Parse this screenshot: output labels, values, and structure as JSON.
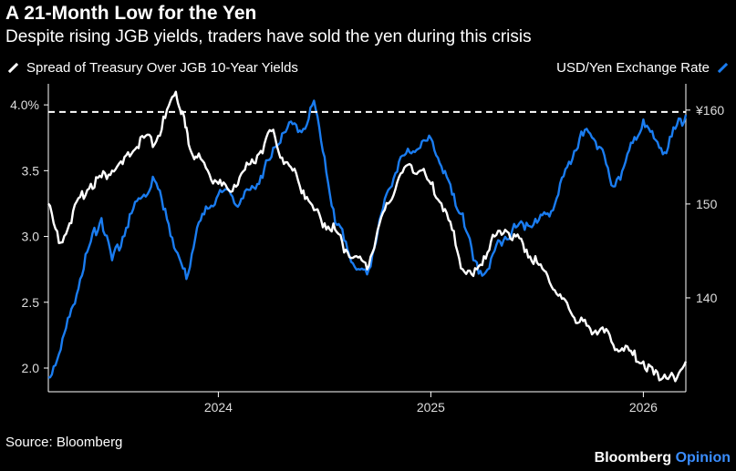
{
  "colors": {
    "background": "#000000",
    "spread": "#ffffff",
    "usdjpy": "#1a7cf0",
    "accent": "#3a8dff"
  },
  "chart_data": {
    "type": "line",
    "title": "A 21-Month Low for the Yen",
    "subtitle": "Despite rising JGB yields, traders have sold the yen during this crisis",
    "x_ticks": [
      "2024",
      "2025",
      "2026"
    ],
    "left_axis": {
      "label": "Spread of Treasury Over JGB 10-Year Yields",
      "ticks": [
        "4.0%",
        "3.5",
        "3.0",
        "2.5",
        "2.0"
      ],
      "tick_values": [
        4.0,
        3.5,
        3.0,
        2.5,
        2.0
      ],
      "ylim": [
        1.82,
        4.16
      ]
    },
    "right_axis": {
      "label": "USD/Yen Exchange Rate",
      "ticks": [
        "¥160",
        "150",
        "140"
      ],
      "tick_values": [
        160,
        150,
        140
      ],
      "ylim": [
        130,
        162.8
      ]
    },
    "reference_line": {
      "axis": "right",
      "value": 159.8,
      "style": "dashed"
    },
    "x_range": [
      2023.2,
      2026.2
    ],
    "series": [
      {
        "name": "Spread of Treasury Over JGB 10-Year Yields",
        "axis": "left",
        "x": [
          2023.2,
          2023.25,
          2023.3,
          2023.35,
          2023.4,
          2023.45,
          2023.5,
          2023.55,
          2023.6,
          2023.65,
          2023.7,
          2023.75,
          2023.8,
          2023.83,
          2023.86,
          2023.9,
          2023.95,
          2024.0,
          2024.05,
          2024.1,
          2024.15,
          2024.2,
          2024.25,
          2024.3,
          2024.35,
          2024.4,
          2024.45,
          2024.5,
          2024.55,
          2024.6,
          2024.65,
          2024.7,
          2024.75,
          2024.8,
          2024.85,
          2024.9,
          2024.95,
          2025.0,
          2025.05,
          2025.1,
          2025.15,
          2025.2,
          2025.25,
          2025.3,
          2025.35,
          2025.4,
          2025.45,
          2025.5,
          2025.55,
          2025.6,
          2025.65,
          2025.7,
          2025.75,
          2025.8,
          2025.85,
          2025.9,
          2025.95,
          2026.0,
          2026.05,
          2026.1,
          2026.15,
          2026.2
        ],
        "values": [
          3.25,
          2.95,
          3.1,
          3.3,
          3.4,
          3.45,
          3.5,
          3.55,
          3.65,
          3.75,
          3.7,
          3.9,
          4.1,
          3.95,
          3.7,
          3.6,
          3.5,
          3.4,
          3.35,
          3.45,
          3.55,
          3.65,
          3.8,
          3.6,
          3.5,
          3.35,
          3.2,
          3.1,
          3.05,
          2.9,
          2.85,
          2.75,
          3.05,
          3.25,
          3.45,
          3.55,
          3.5,
          3.4,
          3.25,
          3.05,
          2.75,
          2.7,
          2.85,
          3.0,
          3.05,
          3.0,
          2.9,
          2.8,
          2.7,
          2.55,
          2.45,
          2.35,
          2.3,
          2.3,
          2.2,
          2.15,
          2.1,
          2.05,
          1.95,
          1.95,
          1.9,
          2.05
        ]
      },
      {
        "name": "USD/Yen Exchange Rate",
        "axis": "right",
        "x": [
          2023.2,
          2023.25,
          2023.3,
          2023.35,
          2023.4,
          2023.45,
          2023.5,
          2023.55,
          2023.6,
          2023.65,
          2023.7,
          2023.75,
          2023.8,
          2023.85,
          2023.9,
          2023.95,
          2024.0,
          2024.05,
          2024.1,
          2024.15,
          2024.2,
          2024.25,
          2024.3,
          2024.35,
          2024.4,
          2024.45,
          2024.5,
          2024.55,
          2024.6,
          2024.65,
          2024.7,
          2024.75,
          2024.8,
          2024.85,
          2024.9,
          2024.95,
          2025.0,
          2025.05,
          2025.1,
          2025.15,
          2025.2,
          2025.25,
          2025.3,
          2025.35,
          2025.4,
          2025.45,
          2025.5,
          2025.55,
          2025.6,
          2025.65,
          2025.7,
          2025.75,
          2025.8,
          2025.85,
          2025.9,
          2025.95,
          2026.0,
          2026.05,
          2026.1,
          2026.15,
          2026.2
        ],
        "values": [
          131.5,
          134.0,
          138.0,
          142.0,
          146.0,
          148.5,
          144.0,
          146.5,
          149.5,
          151.0,
          152.5,
          149.5,
          145.0,
          142.0,
          147.5,
          149.5,
          151.0,
          151.5,
          150.0,
          151.5,
          153.0,
          155.0,
          157.5,
          158.5,
          158.0,
          161.0,
          155.0,
          148.0,
          146.0,
          143.0,
          142.5,
          147.0,
          151.5,
          154.5,
          155.5,
          156.0,
          157.0,
          154.0,
          151.0,
          149.0,
          144.0,
          142.5,
          145.0,
          146.5,
          147.5,
          148.0,
          148.0,
          149.0,
          151.0,
          154.5,
          157.0,
          157.5,
          156.0,
          152.0,
          153.5,
          156.5,
          159.0,
          157.0,
          155.5,
          158.0,
          159.5
        ]
      }
    ]
  },
  "footer": {
    "source": "Source: Bloomberg",
    "brand": "Bloomberg",
    "brand_accent": "Opinion"
  }
}
